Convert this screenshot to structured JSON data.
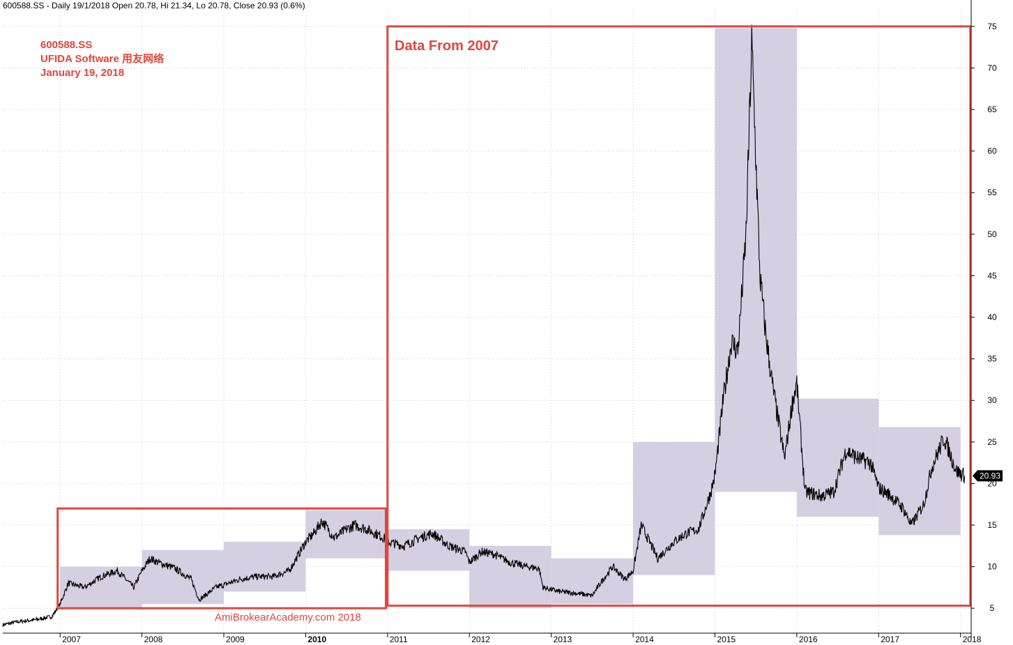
{
  "header": {
    "text": "600588.SS - Daily 19/1/2018 Open 20.78, Hi 21.34, Lo 20.78, Close 20.93 (0.6%)"
  },
  "annotations": {
    "title_lines": [
      "600588.SS",
      "UFIDA Software 用友网络",
      "January 19, 2018"
    ],
    "box_label": "Data From 2007",
    "watermark": "AmiBrokearAcademy.com 2018",
    "last_price_label": "20.93"
  },
  "colors": {
    "annotation": "#e2453c",
    "range_box": "#d3cce0",
    "price_line": "#000000",
    "grid": "#c8c8c8"
  },
  "chart_data": {
    "type": "line",
    "title": "",
    "xlabel": "",
    "ylabel": "",
    "ylim": [
      2,
      77
    ],
    "xlim": [
      2006.3,
      2018.13
    ],
    "y_axis_position": "right",
    "grid": true,
    "x_ticks": [
      "2007",
      "2008",
      "2009",
      "2010",
      "2011",
      "2012",
      "2013",
      "2014",
      "2015",
      "2016",
      "2017",
      "2018"
    ],
    "y_ticks": [
      5,
      10,
      15,
      20,
      25,
      30,
      35,
      40,
      45,
      50,
      55,
      60,
      65,
      70,
      75
    ],
    "series": [
      {
        "x": [
          2006.3,
          2006.5,
          2006.7,
          2006.9,
          2007.0,
          2007.1,
          2007.3,
          2007.5,
          2007.7,
          2007.9,
          2008.0,
          2008.1,
          2008.2,
          2008.4,
          2008.6,
          2008.7,
          2008.9,
          2009.0,
          2009.2,
          2009.4,
          2009.6,
          2009.8,
          2010.0,
          2010.1,
          2010.2,
          2010.35,
          2010.5,
          2010.6,
          2010.75,
          2010.95,
          2011.0,
          2011.2,
          2011.4,
          2011.55,
          2011.75,
          2011.95,
          2012.0,
          2012.15,
          2012.3,
          2012.5,
          2012.7,
          2012.85,
          2012.9,
          2013.1,
          2013.3,
          2013.5,
          2013.6,
          2013.75,
          2013.9,
          2014.0,
          2014.1,
          2014.3,
          2014.5,
          2014.65,
          2014.8,
          2014.95,
          2015.0,
          2015.1,
          2015.2,
          2015.28,
          2015.38,
          2015.45,
          2015.55,
          2015.62,
          2015.7,
          2015.85,
          2015.95,
          2016.0,
          2016.1,
          2016.3,
          2016.45,
          2016.6,
          2016.75,
          2016.9,
          2017.0,
          2017.15,
          2017.3,
          2017.4,
          2017.55,
          2017.65,
          2017.8,
          2017.95,
          2018.05
        ],
        "values": [
          3.0,
          3.4,
          3.6,
          4.0,
          5.5,
          8.0,
          7.5,
          8.8,
          9.5,
          7.5,
          9.5,
          11.0,
          10.5,
          9.8,
          8.5,
          6.0,
          7.5,
          7.8,
          8.5,
          8.8,
          8.8,
          9.5,
          13.0,
          14.0,
          15.5,
          13.5,
          14.5,
          15.0,
          14.5,
          13.5,
          13.0,
          12.5,
          13.5,
          14.0,
          12.5,
          11.8,
          10.5,
          11.8,
          11.5,
          10.5,
          10.0,
          9.8,
          7.5,
          7.0,
          6.8,
          6.5,
          8.0,
          10.0,
          8.5,
          9.5,
          15.0,
          11.0,
          13.0,
          14.0,
          14.5,
          19.0,
          21.0,
          30.0,
          37.0,
          36.0,
          50.0,
          73.0,
          45.0,
          38.0,
          32.0,
          23.0,
          30.0,
          32.0,
          19.0,
          18.5,
          19.0,
          24.0,
          23.0,
          22.5,
          19.5,
          18.5,
          17.0,
          15.0,
          17.5,
          22.0,
          25.5,
          21.5,
          20.93
        ]
      }
    ],
    "range_boxes": [
      {
        "x0": 2007.0,
        "x1": 2008.0,
        "ylow": 5.0,
        "yhigh": 10.0
      },
      {
        "x0": 2008.0,
        "x1": 2009.0,
        "ylow": 5.5,
        "yhigh": 12.0
      },
      {
        "x0": 2009.0,
        "x1": 2010.0,
        "ylow": 7.0,
        "yhigh": 13.0
      },
      {
        "x0": 2010.0,
        "x1": 2011.0,
        "ylow": 11.0,
        "yhigh": 16.8
      },
      {
        "x0": 2011.0,
        "x1": 2012.0,
        "ylow": 9.5,
        "yhigh": 14.5
      },
      {
        "x0": 2012.0,
        "x1": 2013.0,
        "ylow": 5.0,
        "yhigh": 12.5
      },
      {
        "x0": 2013.0,
        "x1": 2014.0,
        "ylow": 5.5,
        "yhigh": 11.0
      },
      {
        "x0": 2014.0,
        "x1": 2015.0,
        "ylow": 9.0,
        "yhigh": 25.0
      },
      {
        "x0": 2015.0,
        "x1": 2016.0,
        "ylow": 19.0,
        "yhigh": 74.8
      },
      {
        "x0": 2016.0,
        "x1": 2017.0,
        "ylow": 16.0,
        "yhigh": 30.2
      },
      {
        "x0": 2017.0,
        "x1": 2018.0,
        "ylow": 13.8,
        "yhigh": 26.8
      }
    ],
    "highlight_boxes": [
      {
        "x0": 2006.97,
        "x1": 2010.98,
        "ylow": 5.0,
        "yhigh": 17.0
      },
      {
        "x0": 2011.0,
        "x1": 2018.12,
        "ylow": 5.3,
        "yhigh": 75.0
      }
    ]
  }
}
